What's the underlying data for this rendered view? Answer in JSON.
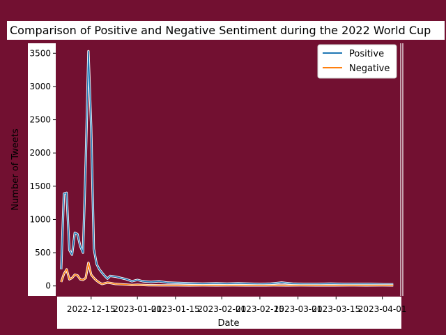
{
  "chart_data": {
    "type": "line",
    "title": "Comparison of Positive and Negative Sentiment during the 2022 World Cup",
    "xlabel": "Date",
    "ylabel": "Number of Tweets",
    "ylim": [
      -150,
      3650
    ],
    "xlim": [
      "2022-12-02",
      "2023-04-08"
    ],
    "yticks": [
      0,
      500,
      1000,
      1500,
      2000,
      2500,
      3000,
      3500
    ],
    "xticks": [
      "2022-12-15",
      "2023-01-01",
      "2023-01-15",
      "2023-02-01",
      "2023-02-15",
      "2023-03-01",
      "2023-03-15",
      "2023-04-01"
    ],
    "legend_position": "top-right",
    "series": [
      {
        "name": "Positive",
        "color": "#1f77b4",
        "points": [
          [
            "2022-12-04",
            250
          ],
          [
            "2022-12-05",
            1390
          ],
          [
            "2022-12-06",
            1400
          ],
          [
            "2022-12-07",
            540
          ],
          [
            "2022-12-08",
            470
          ],
          [
            "2022-12-09",
            800
          ],
          [
            "2022-12-10",
            780
          ],
          [
            "2022-12-11",
            600
          ],
          [
            "2022-12-12",
            500
          ],
          [
            "2022-12-13",
            1850
          ],
          [
            "2022-12-14",
            3530
          ],
          [
            "2022-12-15",
            2400
          ],
          [
            "2022-12-16",
            560
          ],
          [
            "2022-12-17",
            330
          ],
          [
            "2022-12-18",
            250
          ],
          [
            "2022-12-19",
            200
          ],
          [
            "2022-12-20",
            150
          ],
          [
            "2022-12-21",
            110
          ],
          [
            "2022-12-22",
            150
          ],
          [
            "2022-12-24",
            140
          ],
          [
            "2022-12-26",
            120
          ],
          [
            "2022-12-28",
            100
          ],
          [
            "2022-12-30",
            70
          ],
          [
            "2023-01-01",
            90
          ],
          [
            "2023-01-03",
            70
          ],
          [
            "2023-01-06",
            60
          ],
          [
            "2023-01-09",
            70
          ],
          [
            "2023-01-12",
            50
          ],
          [
            "2023-01-16",
            45
          ],
          [
            "2023-01-20",
            40
          ],
          [
            "2023-01-25",
            35
          ],
          [
            "2023-01-30",
            40
          ],
          [
            "2023-02-03",
            35
          ],
          [
            "2023-02-07",
            40
          ],
          [
            "2023-02-11",
            35
          ],
          [
            "2023-02-15",
            30
          ],
          [
            "2023-02-19",
            35
          ],
          [
            "2023-02-23",
            50
          ],
          [
            "2023-02-27",
            35
          ],
          [
            "2023-03-03",
            30
          ],
          [
            "2023-03-08",
            30
          ],
          [
            "2023-03-13",
            35
          ],
          [
            "2023-03-18",
            30
          ],
          [
            "2023-03-23",
            30
          ],
          [
            "2023-03-28",
            30
          ],
          [
            "2023-04-02",
            25
          ],
          [
            "2023-04-05",
            25
          ]
        ]
      },
      {
        "name": "Negative",
        "color": "#ff7f0e",
        "points": [
          [
            "2022-12-04",
            60
          ],
          [
            "2022-12-05",
            180
          ],
          [
            "2022-12-06",
            250
          ],
          [
            "2022-12-07",
            100
          ],
          [
            "2022-12-08",
            120
          ],
          [
            "2022-12-09",
            170
          ],
          [
            "2022-12-10",
            160
          ],
          [
            "2022-12-11",
            100
          ],
          [
            "2022-12-12",
            90
          ],
          [
            "2022-12-13",
            120
          ],
          [
            "2022-12-14",
            350
          ],
          [
            "2022-12-15",
            170
          ],
          [
            "2022-12-16",
            120
          ],
          [
            "2022-12-17",
            80
          ],
          [
            "2022-12-18",
            50
          ],
          [
            "2022-12-19",
            30
          ],
          [
            "2022-12-20",
            40
          ],
          [
            "2022-12-21",
            50
          ],
          [
            "2022-12-22",
            45
          ],
          [
            "2022-12-24",
            30
          ],
          [
            "2022-12-26",
            25
          ],
          [
            "2022-12-28",
            20
          ],
          [
            "2022-12-30",
            15
          ],
          [
            "2023-01-01",
            18
          ],
          [
            "2023-01-05",
            12
          ],
          [
            "2023-01-10",
            10
          ],
          [
            "2023-01-15",
            10
          ],
          [
            "2023-01-20",
            8
          ],
          [
            "2023-01-25",
            10
          ],
          [
            "2023-01-30",
            8
          ],
          [
            "2023-02-05",
            10
          ],
          [
            "2023-02-10",
            8
          ],
          [
            "2023-02-15",
            8
          ],
          [
            "2023-02-20",
            10
          ],
          [
            "2023-02-25",
            8
          ],
          [
            "2023-03-02",
            10
          ],
          [
            "2023-03-08",
            8
          ],
          [
            "2023-03-14",
            8
          ],
          [
            "2023-03-20",
            10
          ],
          [
            "2023-03-26",
            8
          ],
          [
            "2023-04-01",
            10
          ],
          [
            "2023-04-05",
            8
          ]
        ]
      }
    ]
  }
}
